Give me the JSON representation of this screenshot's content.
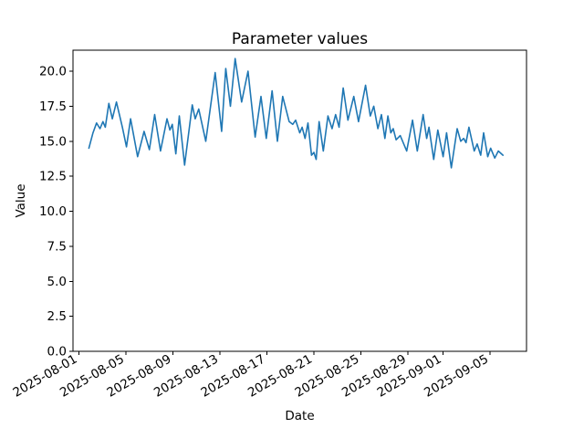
{
  "figure": {
    "title": "Parameter values",
    "xlabel": "Date",
    "ylabel": "Value"
  },
  "chart_data": {
    "type": "line",
    "title": "Parameter values",
    "xlabel": "Date",
    "ylabel": "Value",
    "grid": false,
    "legend": "none",
    "line_color": "#1f77b4",
    "background_color": "#ffffff",
    "x_axis": {
      "kind": "date",
      "x_unit": "days_since_2025-08-01",
      "tick_labels": [
        "2025-08-01",
        "2025-08-05",
        "2025-08-09",
        "2025-08-13",
        "2025-08-17",
        "2025-08-21",
        "2025-08-25",
        "2025-08-29",
        "2025-09-01",
        "2025-09-05"
      ],
      "tick_days": [
        0,
        4,
        8,
        12,
        16,
        20,
        24,
        28,
        31,
        35
      ],
      "xlim_days": [
        -0.5,
        38.1
      ],
      "tick_label_rotation_deg": 30
    },
    "y_axis": {
      "tick_labels": [
        "0.0",
        "2.5",
        "5.0",
        "7.5",
        "10.0",
        "12.5",
        "15.0",
        "17.5",
        "20.0"
      ],
      "tick_values": [
        0,
        2.5,
        5,
        7.5,
        10,
        12.5,
        15,
        17.5,
        20
      ],
      "ylim": [
        0,
        21.5
      ]
    },
    "series": [
      {
        "name": "parameter-values",
        "color": "#1f77b4",
        "points_day_value": [
          [
            0.85,
            14.5
          ],
          [
            1.2,
            15.6
          ],
          [
            1.5,
            16.3
          ],
          [
            1.8,
            15.9
          ],
          [
            2.05,
            16.4
          ],
          [
            2.25,
            16.0
          ],
          [
            2.55,
            17.7
          ],
          [
            2.85,
            16.6
          ],
          [
            3.2,
            17.8
          ],
          [
            3.7,
            16.0
          ],
          [
            4.05,
            14.6
          ],
          [
            4.4,
            16.6
          ],
          [
            5.0,
            13.9
          ],
          [
            5.55,
            15.7
          ],
          [
            6.0,
            14.4
          ],
          [
            6.45,
            16.9
          ],
          [
            6.95,
            14.3
          ],
          [
            7.5,
            16.6
          ],
          [
            7.75,
            15.8
          ],
          [
            7.95,
            16.2
          ],
          [
            8.25,
            14.1
          ],
          [
            8.55,
            16.8
          ],
          [
            9.0,
            13.3
          ],
          [
            9.65,
            17.6
          ],
          [
            9.9,
            16.6
          ],
          [
            10.2,
            17.3
          ],
          [
            10.8,
            15.0
          ],
          [
            11.6,
            19.9
          ],
          [
            12.15,
            15.7
          ],
          [
            12.5,
            20.2
          ],
          [
            12.9,
            17.5
          ],
          [
            13.3,
            20.9
          ],
          [
            13.85,
            17.8
          ],
          [
            14.4,
            20.0
          ],
          [
            15.0,
            15.3
          ],
          [
            15.5,
            18.2
          ],
          [
            15.95,
            15.2
          ],
          [
            16.45,
            18.6
          ],
          [
            16.9,
            15.0
          ],
          [
            17.35,
            18.2
          ],
          [
            17.9,
            16.4
          ],
          [
            18.2,
            16.2
          ],
          [
            18.45,
            16.5
          ],
          [
            18.8,
            15.6
          ],
          [
            19.0,
            16.0
          ],
          [
            19.25,
            15.2
          ],
          [
            19.5,
            16.3
          ],
          [
            19.8,
            14.0
          ],
          [
            20.0,
            14.2
          ],
          [
            20.2,
            13.7
          ],
          [
            20.45,
            16.4
          ],
          [
            20.8,
            14.3
          ],
          [
            21.2,
            16.8
          ],
          [
            21.55,
            15.9
          ],
          [
            21.85,
            16.9
          ],
          [
            22.15,
            16.0
          ],
          [
            22.5,
            18.8
          ],
          [
            22.9,
            16.5
          ],
          [
            23.4,
            18.2
          ],
          [
            23.8,
            16.4
          ],
          [
            24.4,
            19.0
          ],
          [
            24.8,
            16.8
          ],
          [
            25.1,
            17.5
          ],
          [
            25.45,
            15.9
          ],
          [
            25.75,
            16.9
          ],
          [
            26.05,
            15.2
          ],
          [
            26.3,
            16.8
          ],
          [
            26.55,
            15.6
          ],
          [
            26.75,
            15.9
          ],
          [
            27.0,
            15.1
          ],
          [
            27.35,
            15.4
          ],
          [
            27.9,
            14.3
          ],
          [
            28.4,
            16.5
          ],
          [
            28.8,
            14.3
          ],
          [
            29.3,
            16.9
          ],
          [
            29.6,
            15.2
          ],
          [
            29.8,
            16.0
          ],
          [
            30.2,
            13.7
          ],
          [
            30.55,
            15.8
          ],
          [
            31.0,
            13.9
          ],
          [
            31.3,
            15.6
          ],
          [
            31.7,
            13.1
          ],
          [
            32.2,
            15.9
          ],
          [
            32.5,
            15.0
          ],
          [
            32.75,
            15.2
          ],
          [
            32.95,
            14.9
          ],
          [
            33.2,
            16.0
          ],
          [
            33.65,
            14.3
          ],
          [
            33.9,
            14.8
          ],
          [
            34.2,
            14.0
          ],
          [
            34.45,
            15.6
          ],
          [
            34.8,
            13.9
          ],
          [
            35.05,
            14.5
          ],
          [
            35.4,
            13.8
          ],
          [
            35.7,
            14.3
          ],
          [
            36.1,
            14.0
          ]
        ]
      }
    ]
  }
}
